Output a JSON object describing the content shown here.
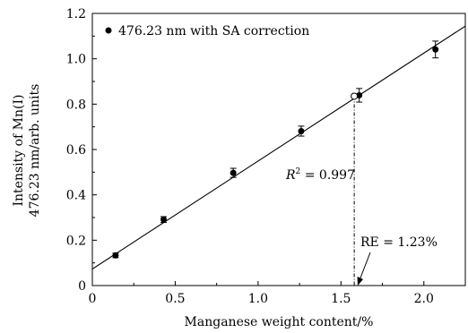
{
  "chart_data": {
    "type": "scatter",
    "xlabel": "Manganese weight content/%",
    "ylabel_line1": "Intensity of Mn(I)",
    "ylabel_line2": "476.23 nm/arb. units",
    "xlim": [
      0,
      2.25
    ],
    "ylim": [
      0,
      1.2
    ],
    "x_ticks": [
      "0",
      "0.5",
      "1.0",
      "1.5",
      "2.0"
    ],
    "x_tick_values": [
      0,
      0.5,
      1.0,
      1.5,
      2.0
    ],
    "y_ticks": [
      "0",
      "0.2",
      "0.4",
      "0.6",
      "0.8",
      "1.0",
      "1.2"
    ],
    "y_tick_values": [
      0,
      0.2,
      0.4,
      0.6,
      0.8,
      1.0,
      1.2
    ],
    "series": [
      {
        "name": "476.23 nm with SA correction",
        "marker": "filled-circle",
        "color": "#000000",
        "points": [
          {
            "x": 0.14,
            "y": 0.133,
            "err": 0.01
          },
          {
            "x": 0.43,
            "y": 0.291,
            "err": 0.013
          },
          {
            "x": 0.85,
            "y": 0.497,
            "err": 0.02
          },
          {
            "x": 1.26,
            "y": 0.681,
            "err": 0.022
          },
          {
            "x": 1.61,
            "y": 0.839,
            "err": 0.03
          },
          {
            "x": 2.07,
            "y": 1.041,
            "err": 0.037
          }
        ]
      }
    ],
    "fit_line": {
      "slope": 0.476,
      "intercept": 0.073
    },
    "open_point": {
      "x": 1.58,
      "y": 0.835
    },
    "dropline_x": 1.58,
    "r2_label_prefix": "R",
    "r2_label_sup": "2",
    "r2_label_value": " = 0.997",
    "re_label": "RE = 1.23%",
    "legend_position": "top-left",
    "grid": false
  }
}
